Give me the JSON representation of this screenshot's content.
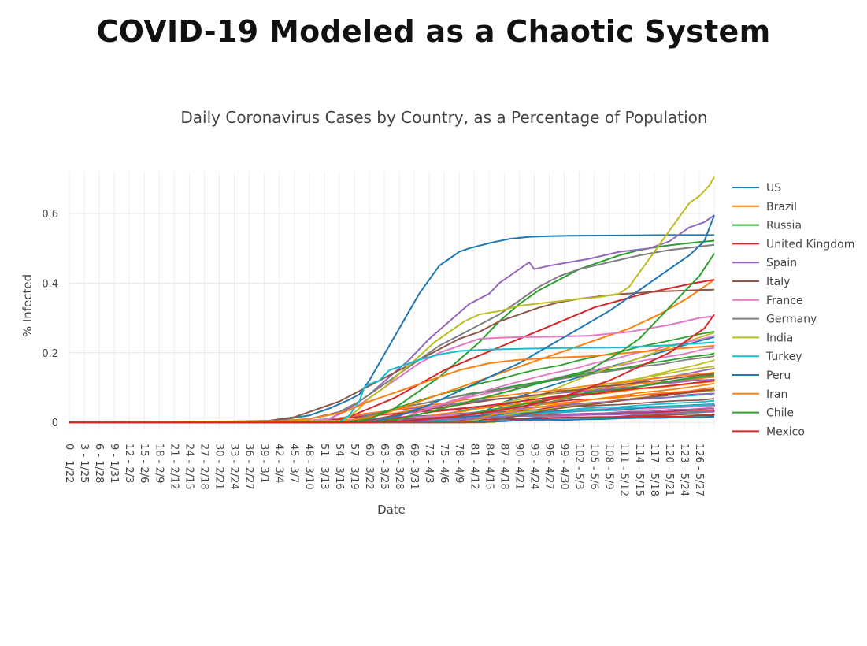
{
  "page": {
    "title": "COVID-19 Modeled as a Chaotic System"
  },
  "chart_data": {
    "type": "line",
    "title": "Daily Coronavirus Cases by Country, as a Percentage of Population",
    "xlabel": "Date",
    "ylabel": "% Infected",
    "ylim": [
      -0.02,
      0.72
    ],
    "yticks": [
      0,
      0.2,
      0.4,
      0.6
    ],
    "ytick_labels": [
      "0",
      "0.2",
      "0.4",
      "0.6"
    ],
    "grid": true,
    "legend_position": "right",
    "x_count": 130,
    "xtick_labels": [
      "0 - 1/22",
      "3 - 1/25",
      "6 - 1/28",
      "9 - 1/31",
      "12 - 2/3",
      "15 - 2/6",
      "18 - 2/9",
      "21 - 2/12",
      "24 - 2/15",
      "27 - 2/18",
      "30 - 2/21",
      "33 - 2/24",
      "36 - 2/27",
      "39 - 3/1",
      "42 - 3/4",
      "45 - 3/7",
      "48 - 3/10",
      "51 - 3/13",
      "54 - 3/16",
      "57 - 3/19",
      "60 - 3/22",
      "63 - 3/25",
      "66 - 3/28",
      "69 - 3/31",
      "72 - 4/3",
      "75 - 4/6",
      "78 - 4/9",
      "81 - 4/12",
      "84 - 4/15",
      "87 - 4/18",
      "90 - 4/21",
      "93 - 4/24",
      "96 - 4/27",
      "99 - 4/30",
      "102 - 5/3",
      "105 - 5/6",
      "108 - 5/9",
      "111 - 5/12",
      "114 - 5/15",
      "117 - 5/18",
      "120 - 5/21",
      "123 - 5/24",
      "126 - 5/27"
    ],
    "series": [
      {
        "name": "US",
        "color": "#1f77b4",
        "points": [
          [
            0,
            0
          ],
          [
            40,
            0.002
          ],
          [
            48,
            0.02
          ],
          [
            52,
            0.04
          ],
          [
            56,
            0.065
          ],
          [
            58,
            0.08
          ],
          [
            60,
            0.12
          ],
          [
            62,
            0.17
          ],
          [
            64,
            0.22
          ],
          [
            66,
            0.27
          ],
          [
            68,
            0.32
          ],
          [
            70,
            0.37
          ],
          [
            72,
            0.41
          ],
          [
            74,
            0.45
          ],
          [
            76,
            0.47
          ],
          [
            78,
            0.49
          ],
          [
            80,
            0.5
          ],
          [
            84,
            0.515
          ],
          [
            88,
            0.527
          ],
          [
            92,
            0.533
          ],
          [
            96,
            0.535
          ],
          [
            100,
            0.536
          ],
          [
            110,
            0.537
          ],
          [
            120,
            0.538
          ],
          [
            129,
            0.538
          ]
        ]
      },
      {
        "name": "Brazil",
        "color": "#ff7f0e",
        "points": [
          [
            0,
            0
          ],
          [
            50,
            0
          ],
          [
            56,
            0.005
          ],
          [
            60,
            0.015
          ],
          [
            64,
            0.03
          ],
          [
            70,
            0.06
          ],
          [
            76,
            0.09
          ],
          [
            82,
            0.12
          ],
          [
            88,
            0.15
          ],
          [
            94,
            0.18
          ],
          [
            100,
            0.21
          ],
          [
            106,
            0.24
          ],
          [
            112,
            0.27
          ],
          [
            118,
            0.31
          ],
          [
            124,
            0.36
          ],
          [
            129,
            0.41
          ]
        ]
      },
      {
        "name": "Russia",
        "color": "#2ca02c",
        "points": [
          [
            0,
            0
          ],
          [
            55,
            0
          ],
          [
            60,
            0.01
          ],
          [
            65,
            0.04
          ],
          [
            70,
            0.09
          ],
          [
            74,
            0.13
          ],
          [
            78,
            0.18
          ],
          [
            82,
            0.23
          ],
          [
            86,
            0.29
          ],
          [
            90,
            0.34
          ],
          [
            94,
            0.38
          ],
          [
            98,
            0.41
          ],
          [
            102,
            0.44
          ],
          [
            106,
            0.46
          ],
          [
            110,
            0.48
          ],
          [
            114,
            0.495
          ],
          [
            118,
            0.505
          ],
          [
            122,
            0.512
          ],
          [
            126,
            0.518
          ],
          [
            129,
            0.522
          ]
        ]
      },
      {
        "name": "United Kingdom",
        "color": "#d62728",
        "points": [
          [
            0,
            0
          ],
          [
            50,
            0.002
          ],
          [
            55,
            0.01
          ],
          [
            60,
            0.04
          ],
          [
            65,
            0.07
          ],
          [
            70,
            0.11
          ],
          [
            75,
            0.15
          ],
          [
            80,
            0.18
          ],
          [
            85,
            0.21
          ],
          [
            90,
            0.24
          ],
          [
            95,
            0.27
          ],
          [
            100,
            0.3
          ],
          [
            105,
            0.33
          ],
          [
            110,
            0.35
          ],
          [
            115,
            0.37
          ],
          [
            120,
            0.385
          ],
          [
            125,
            0.4
          ],
          [
            129,
            0.41
          ]
        ]
      },
      {
        "name": "Spain",
        "color": "#9467bd",
        "points": [
          [
            0,
            0
          ],
          [
            45,
            0.002
          ],
          [
            52,
            0.01
          ],
          [
            56,
            0.04
          ],
          [
            60,
            0.08
          ],
          [
            64,
            0.13
          ],
          [
            68,
            0.18
          ],
          [
            72,
            0.24
          ],
          [
            76,
            0.29
          ],
          [
            80,
            0.34
          ],
          [
            84,
            0.37
          ],
          [
            86,
            0.4
          ],
          [
            88,
            0.42
          ],
          [
            90,
            0.44
          ],
          [
            92,
            0.46
          ],
          [
            93,
            0.44
          ],
          [
            96,
            0.45
          ],
          [
            100,
            0.46
          ],
          [
            104,
            0.47
          ],
          [
            110,
            0.49
          ],
          [
            116,
            0.5
          ],
          [
            120,
            0.52
          ],
          [
            124,
            0.56
          ],
          [
            127,
            0.575
          ],
          [
            129,
            0.595
          ]
        ]
      },
      {
        "name": "Italy",
        "color": "#8c564b",
        "points": [
          [
            0,
            0
          ],
          [
            30,
            0.002
          ],
          [
            40,
            0.005
          ],
          [
            45,
            0.015
          ],
          [
            50,
            0.04
          ],
          [
            54,
            0.06
          ],
          [
            58,
            0.09
          ],
          [
            62,
            0.12
          ],
          [
            66,
            0.15
          ],
          [
            70,
            0.18
          ],
          [
            74,
            0.21
          ],
          [
            78,
            0.24
          ],
          [
            82,
            0.26
          ],
          [
            86,
            0.29
          ],
          [
            90,
            0.31
          ],
          [
            94,
            0.33
          ],
          [
            98,
            0.345
          ],
          [
            102,
            0.355
          ],
          [
            106,
            0.362
          ],
          [
            110,
            0.368
          ],
          [
            114,
            0.372
          ],
          [
            118,
            0.376
          ],
          [
            122,
            0.378
          ],
          [
            126,
            0.38
          ],
          [
            129,
            0.381
          ]
        ]
      },
      {
        "name": "France",
        "color": "#e377c2",
        "points": [
          [
            0,
            0
          ],
          [
            45,
            0.002
          ],
          [
            52,
            0.01
          ],
          [
            58,
            0.05
          ],
          [
            62,
            0.09
          ],
          [
            66,
            0.13
          ],
          [
            70,
            0.17
          ],
          [
            74,
            0.2
          ],
          [
            78,
            0.22
          ],
          [
            82,
            0.24
          ],
          [
            86,
            0.243
          ],
          [
            90,
            0.245
          ],
          [
            96,
            0.246
          ],
          [
            104,
            0.249
          ],
          [
            112,
            0.26
          ],
          [
            120,
            0.28
          ],
          [
            126,
            0.3
          ],
          [
            129,
            0.305
          ]
        ]
      },
      {
        "name": "Germany",
        "color": "#7f7f7f",
        "points": [
          [
            0,
            0
          ],
          [
            40,
            0.002
          ],
          [
            48,
            0.01
          ],
          [
            54,
            0.03
          ],
          [
            58,
            0.06
          ],
          [
            62,
            0.1
          ],
          [
            66,
            0.14
          ],
          [
            70,
            0.18
          ],
          [
            74,
            0.22
          ],
          [
            78,
            0.25
          ],
          [
            82,
            0.28
          ],
          [
            86,
            0.31
          ],
          [
            90,
            0.35
          ],
          [
            94,
            0.39
          ],
          [
            98,
            0.42
          ],
          [
            102,
            0.44
          ],
          [
            108,
            0.46
          ],
          [
            114,
            0.48
          ],
          [
            120,
            0.495
          ],
          [
            126,
            0.505
          ],
          [
            129,
            0.51
          ]
        ]
      },
      {
        "name": "India",
        "color": "#bcbd22",
        "points": [
          [
            0,
            0
          ],
          [
            55,
            0.005
          ],
          [
            58,
            0.04
          ],
          [
            60,
            0.07
          ],
          [
            63,
            0.1
          ],
          [
            66,
            0.14
          ],
          [
            70,
            0.19
          ],
          [
            73,
            0.23
          ],
          [
            76,
            0.26
          ],
          [
            79,
            0.29
          ],
          [
            82,
            0.31
          ],
          [
            86,
            0.32
          ],
          [
            90,
            0.335
          ],
          [
            96,
            0.345
          ],
          [
            102,
            0.355
          ],
          [
            106,
            0.36
          ],
          [
            110,
            0.37
          ],
          [
            112,
            0.39
          ],
          [
            114,
            0.43
          ],
          [
            116,
            0.47
          ],
          [
            118,
            0.51
          ],
          [
            120,
            0.55
          ],
          [
            122,
            0.59
          ],
          [
            124,
            0.63
          ],
          [
            126,
            0.65
          ],
          [
            128,
            0.68
          ],
          [
            129,
            0.705
          ]
        ]
      },
      {
        "name": "Turkey",
        "color": "#17becf",
        "points": [
          [
            0,
            0
          ],
          [
            54,
            0
          ],
          [
            56,
            0.02
          ],
          [
            58,
            0.06
          ],
          [
            59,
            0.1
          ],
          [
            60,
            0.11
          ],
          [
            62,
            0.12
          ],
          [
            64,
            0.15
          ],
          [
            66,
            0.16
          ],
          [
            68,
            0.17
          ],
          [
            70,
            0.18
          ],
          [
            74,
            0.195
          ],
          [
            78,
            0.205
          ],
          [
            82,
            0.208
          ],
          [
            86,
            0.21
          ],
          [
            92,
            0.212
          ],
          [
            100,
            0.214
          ],
          [
            110,
            0.215
          ],
          [
            118,
            0.22
          ],
          [
            124,
            0.225
          ],
          [
            129,
            0.23
          ]
        ]
      },
      {
        "name": "Peru",
        "color": "#1f77b4",
        "points": [
          [
            0,
            0
          ],
          [
            60,
            0
          ],
          [
            66,
            0.02
          ],
          [
            72,
            0.05
          ],
          [
            78,
            0.09
          ],
          [
            84,
            0.13
          ],
          [
            90,
            0.17
          ],
          [
            96,
            0.22
          ],
          [
            102,
            0.27
          ],
          [
            108,
            0.32
          ],
          [
            112,
            0.36
          ],
          [
            116,
            0.4
          ],
          [
            120,
            0.44
          ],
          [
            124,
            0.48
          ],
          [
            127,
            0.52
          ],
          [
            129,
            0.595
          ]
        ]
      },
      {
        "name": "Iran",
        "color": "#ff7f0e",
        "points": [
          [
            0,
            0
          ],
          [
            40,
            0.002
          ],
          [
            48,
            0.01
          ],
          [
            55,
            0.03
          ],
          [
            60,
            0.06
          ],
          [
            66,
            0.09
          ],
          [
            72,
            0.12
          ],
          [
            78,
            0.15
          ],
          [
            84,
            0.17
          ],
          [
            90,
            0.18
          ],
          [
            96,
            0.185
          ],
          [
            104,
            0.19
          ],
          [
            112,
            0.2
          ],
          [
            120,
            0.21
          ],
          [
            129,
            0.22
          ]
        ]
      },
      {
        "name": "Chile",
        "color": "#2ca02c",
        "points": [
          [
            0,
            0
          ],
          [
            60,
            0
          ],
          [
            66,
            0.01
          ],
          [
            72,
            0.03
          ],
          [
            80,
            0.06
          ],
          [
            88,
            0.09
          ],
          [
            96,
            0.12
          ],
          [
            104,
            0.15
          ],
          [
            110,
            0.2
          ],
          [
            114,
            0.24
          ],
          [
            118,
            0.3
          ],
          [
            122,
            0.36
          ],
          [
            126,
            0.42
          ],
          [
            129,
            0.485
          ]
        ]
      },
      {
        "name": "Mexico",
        "color": "#d62728",
        "points": [
          [
            0,
            0
          ],
          [
            60,
            0
          ],
          [
            68,
            0.005
          ],
          [
            76,
            0.015
          ],
          [
            84,
            0.03
          ],
          [
            92,
            0.05
          ],
          [
            100,
            0.08
          ],
          [
            108,
            0.12
          ],
          [
            114,
            0.16
          ],
          [
            120,
            0.2
          ],
          [
            124,
            0.24
          ],
          [
            127,
            0.27
          ],
          [
            129,
            0.31
          ]
        ]
      }
    ]
  }
}
